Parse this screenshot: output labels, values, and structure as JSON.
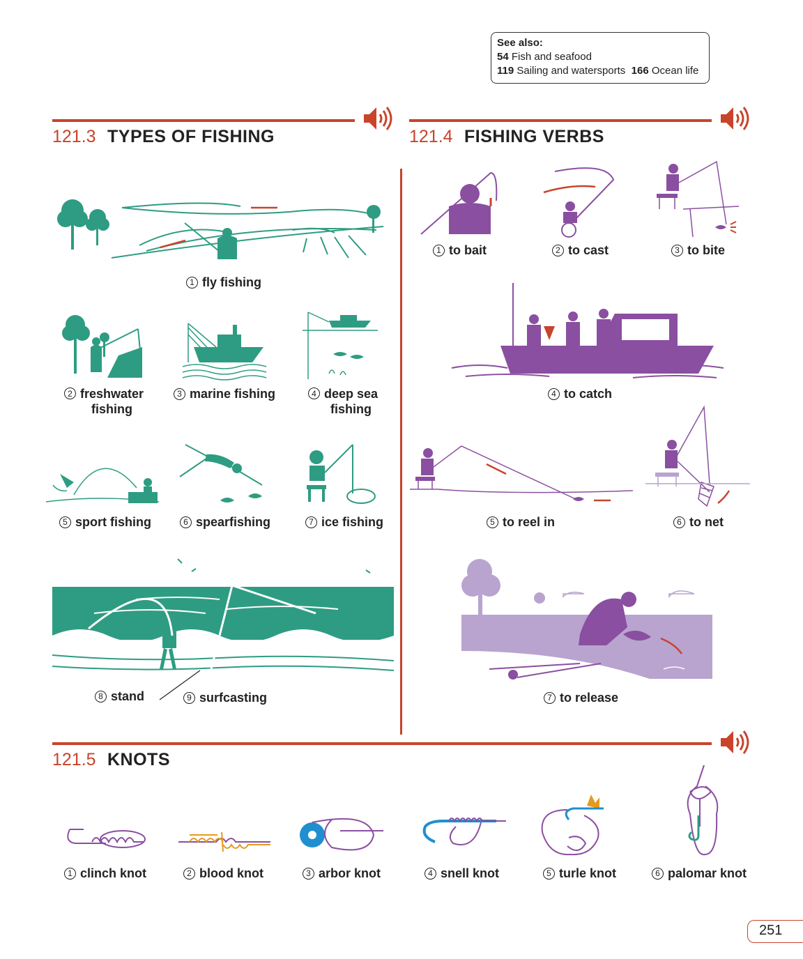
{
  "see_also": {
    "label": "See also:",
    "items": [
      {
        "num": "54",
        "text": "Fish and seafood"
      },
      {
        "num": "119",
        "text": "Sailing and watersports"
      },
      {
        "num": "166",
        "text": "Ocean life"
      }
    ]
  },
  "sections": {
    "types": {
      "number": "121.3",
      "title": "TYPES OF FISHING",
      "items": [
        {
          "num": "1",
          "label": "fly fishing"
        },
        {
          "num": "2",
          "label": "freshwater",
          "label2": "fishing"
        },
        {
          "num": "3",
          "label": "marine fishing"
        },
        {
          "num": "4",
          "label": "deep sea",
          "label2": "fishing"
        },
        {
          "num": "5",
          "label": "sport fishing"
        },
        {
          "num": "6",
          "label": "spearfishing"
        },
        {
          "num": "7",
          "label": "ice fishing"
        },
        {
          "num": "8",
          "label": "stand"
        },
        {
          "num": "9",
          "label": "surfcasting"
        }
      ]
    },
    "verbs": {
      "number": "121.4",
      "title": "FISHING VERBS",
      "items": [
        {
          "num": "1",
          "label": "to bait"
        },
        {
          "num": "2",
          "label": "to cast"
        },
        {
          "num": "3",
          "label": "to bite"
        },
        {
          "num": "4",
          "label": "to catch"
        },
        {
          "num": "5",
          "label": "to reel in"
        },
        {
          "num": "6",
          "label": "to net"
        },
        {
          "num": "7",
          "label": "to release"
        }
      ]
    },
    "knots": {
      "number": "121.5",
      "title": "KNOTS",
      "items": [
        {
          "num": "1",
          "label": "clinch knot"
        },
        {
          "num": "2",
          "label": "blood knot"
        },
        {
          "num": "3",
          "label": "arbor knot"
        },
        {
          "num": "4",
          "label": "snell knot"
        },
        {
          "num": "5",
          "label": "turle knot"
        },
        {
          "num": "6",
          "label": "palomar knot"
        }
      ]
    }
  },
  "page_number": "251",
  "colors": {
    "accent": "#c8442b",
    "teal": "#2e9c82",
    "purple": "#8a4fa0",
    "light_purple": "#b9a3cf",
    "blue": "#1f8fd0",
    "orange": "#e39a1e"
  },
  "icons": [
    "speaker-icon"
  ]
}
